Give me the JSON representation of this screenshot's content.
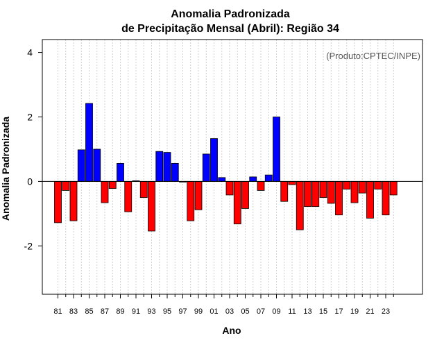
{
  "chart_data": {
    "type": "bar",
    "title_line1": "Anomalia Padronizada",
    "title_line2": "de Precipitação Mensal (Abril): Região 34",
    "xlabel": "Ano",
    "ylabel": "Anomalia Padronizada",
    "annotation": "(Produto:CPTEC/INPE)",
    "ylim": [
      -3.5,
      4.4
    ],
    "yticks": [
      -2,
      0,
      2,
      4
    ],
    "ytick_labels": [
      "-2",
      "0",
      "2",
      "4"
    ],
    "years": [
      "81",
      "82",
      "83",
      "84",
      "85",
      "86",
      "87",
      "88",
      "89",
      "90",
      "91",
      "92",
      "93",
      "94",
      "95",
      "96",
      "97",
      "98",
      "99",
      "00",
      "01",
      "02",
      "03",
      "04",
      "05",
      "06",
      "07",
      "08",
      "09",
      "10",
      "11",
      "12",
      "13",
      "14",
      "15",
      "16",
      "17",
      "18",
      "19",
      "20",
      "21",
      "22",
      "23",
      "24"
    ],
    "xtick_labels": [
      "81",
      "83",
      "85",
      "87",
      "89",
      "91",
      "93",
      "95",
      "97",
      "99",
      "01",
      "03",
      "05",
      "07",
      "09",
      "11",
      "13",
      "15",
      "17",
      "19",
      "21",
      "23"
    ],
    "values": [
      -1.28,
      -0.28,
      -1.22,
      0.98,
      2.42,
      1.0,
      -0.66,
      -0.22,
      0.56,
      -0.94,
      0.02,
      -0.5,
      -1.54,
      0.93,
      0.9,
      0.56,
      -0.02,
      -1.22,
      -0.88,
      0.85,
      1.33,
      0.12,
      -0.42,
      -1.32,
      -0.84,
      0.14,
      -0.28,
      0.2,
      2.0,
      -0.62,
      -0.1,
      -1.5,
      -0.78,
      -0.78,
      -0.5,
      -0.68,
      -1.04,
      -0.24,
      -0.66,
      -0.36,
      -1.14,
      -0.24,
      -1.04,
      -0.42
    ],
    "positive_color": "#0000ff",
    "negative_color": "#ff0000",
    "grid": "vertical dotted"
  }
}
